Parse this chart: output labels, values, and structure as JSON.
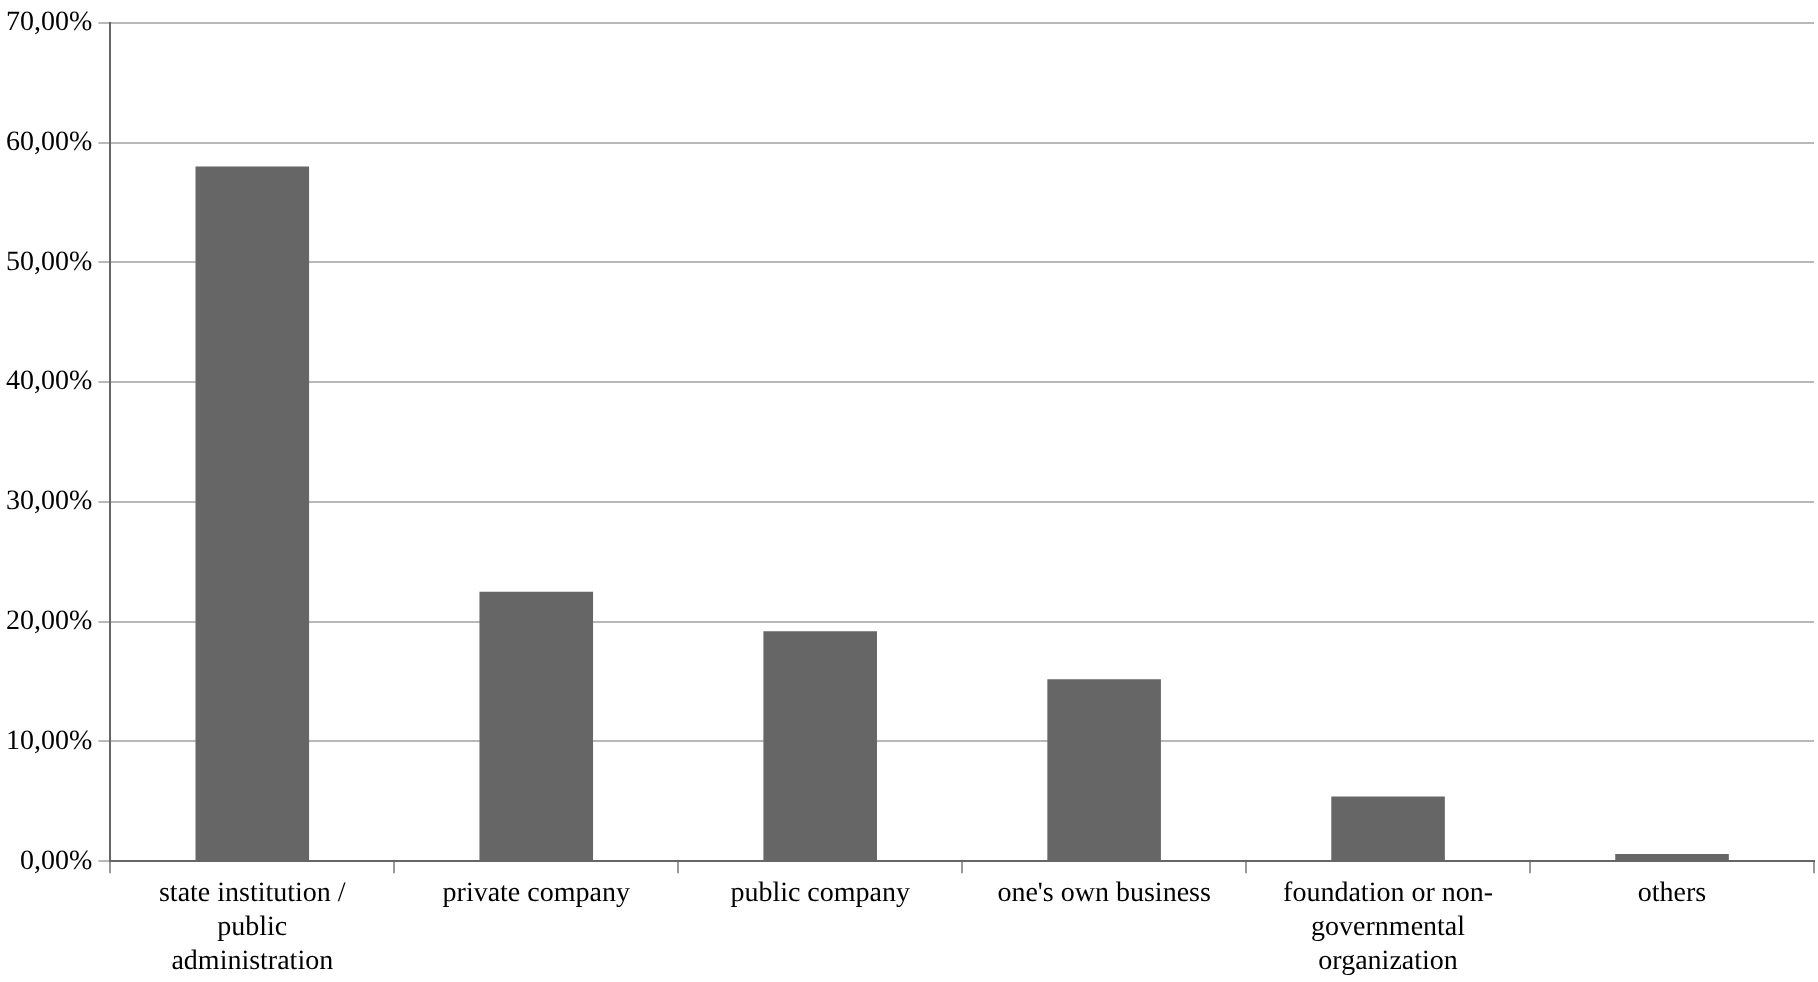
{
  "chart_data": {
    "type": "bar",
    "categories": [
      "state institution / public administration",
      "private company",
      "public company",
      "one's own business",
      "foundation or non-governmental organization",
      "others"
    ],
    "values": [
      58.0,
      22.5,
      19.2,
      15.2,
      5.4,
      0.6
    ],
    "color": "#666666",
    "ylim": [
      0,
      70
    ],
    "yticks": [
      {
        "value": 0,
        "label": "0,00%"
      },
      {
        "value": 10,
        "label": "10,00%"
      },
      {
        "value": 20,
        "label": "20,00%"
      },
      {
        "value": 30,
        "label": "30,00%"
      },
      {
        "value": 40,
        "label": "40,00%"
      },
      {
        "value": 50,
        "label": "50,00%"
      },
      {
        "value": 60,
        "label": "60,00%"
      },
      {
        "value": 70,
        "label": "70,00%"
      }
    ],
    "grid": "y"
  }
}
